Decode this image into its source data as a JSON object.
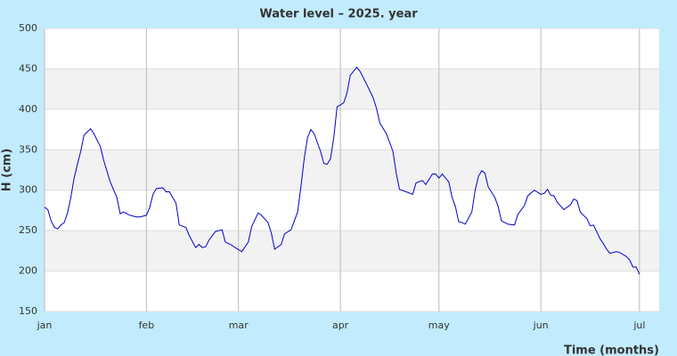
{
  "chart_data": {
    "type": "line",
    "title": "Water level – 2025. year",
    "y_label": "H (cm)",
    "x_label": "Time (months)",
    "color": "#0000cc",
    "grid": true,
    "x": [
      0,
      1,
      2,
      3,
      4,
      5,
      6,
      7,
      8,
      9,
      10,
      11,
      12,
      14,
      15,
      17,
      18,
      20,
      22,
      23,
      24,
      26,
      28,
      29,
      31,
      32,
      33,
      34,
      36,
      37,
      38,
      40,
      41,
      43,
      44,
      46,
      47,
      48,
      49,
      50,
      52,
      54,
      55,
      57,
      58,
      60,
      62,
      63,
      65,
      66,
      68,
      69,
      70,
      72,
      73,
      75,
      77,
      78,
      79,
      80,
      81,
      82,
      84,
      85,
      86,
      87,
      88,
      89,
      91,
      92,
      93,
      95,
      96,
      98,
      100,
      101,
      102,
      104,
      106,
      107,
      108,
      110,
      112,
      113,
      115,
      116,
      118,
      119,
      120,
      121,
      123,
      124,
      125,
      126,
      127,
      128,
      130,
      131,
      132,
      133,
      134,
      135,
      137,
      138,
      139,
      141,
      143,
      144,
      146,
      147,
      149,
      151,
      152,
      153,
      154,
      155,
      156,
      158,
      159,
      160,
      161,
      162,
      163,
      165,
      166,
      167,
      169,
      170,
      171,
      172,
      174,
      175,
      177,
      178,
      179,
      180,
      181
    ],
    "values": [
      279,
      276,
      262,
      254,
      252,
      257,
      260,
      272,
      291,
      315,
      332,
      348,
      368,
      376,
      370,
      354,
      337,
      310,
      291,
      271,
      273,
      269,
      267,
      267,
      269,
      279,
      295,
      302,
      303,
      298,
      298,
      284,
      257,
      254,
      244,
      229,
      233,
      229,
      230,
      238,
      249,
      251,
      236,
      232,
      229,
      224,
      236,
      255,
      272,
      269,
      260,
      247,
      227,
      233,
      246,
      251,
      273,
      304,
      339,
      365,
      375,
      370,
      348,
      333,
      332,
      339,
      365,
      403,
      408,
      420,
      442,
      452,
      447,
      431,
      414,
      401,
      383,
      370,
      348,
      321,
      301,
      298,
      295,
      309,
      312,
      307,
      320,
      320,
      315,
      320,
      310,
      291,
      280,
      261,
      260,
      258,
      273,
      300,
      317,
      324,
      321,
      304,
      291,
      280,
      262,
      258,
      257,
      270,
      281,
      293,
      300,
      295,
      296,
      301,
      294,
      293,
      285,
      276,
      279,
      282,
      289,
      287,
      273,
      265,
      256,
      257,
      240,
      234,
      227,
      222,
      224,
      223,
      218,
      214,
      205,
      205,
      196
    ],
    "xlim": [
      0,
      187
    ],
    "xticks": [
      {
        "value": 0,
        "label": "jan"
      },
      {
        "value": 31,
        "label": "feb"
      },
      {
        "value": 59,
        "label": "mar"
      },
      {
        "value": 90,
        "label": "apr"
      },
      {
        "value": 120,
        "label": "may"
      },
      {
        "value": 151,
        "label": "jun"
      },
      {
        "value": 181,
        "label": "jul"
      }
    ],
    "ylim": [
      150,
      500
    ],
    "yticks": [
      150,
      200,
      250,
      300,
      350,
      400,
      450,
      500
    ]
  }
}
